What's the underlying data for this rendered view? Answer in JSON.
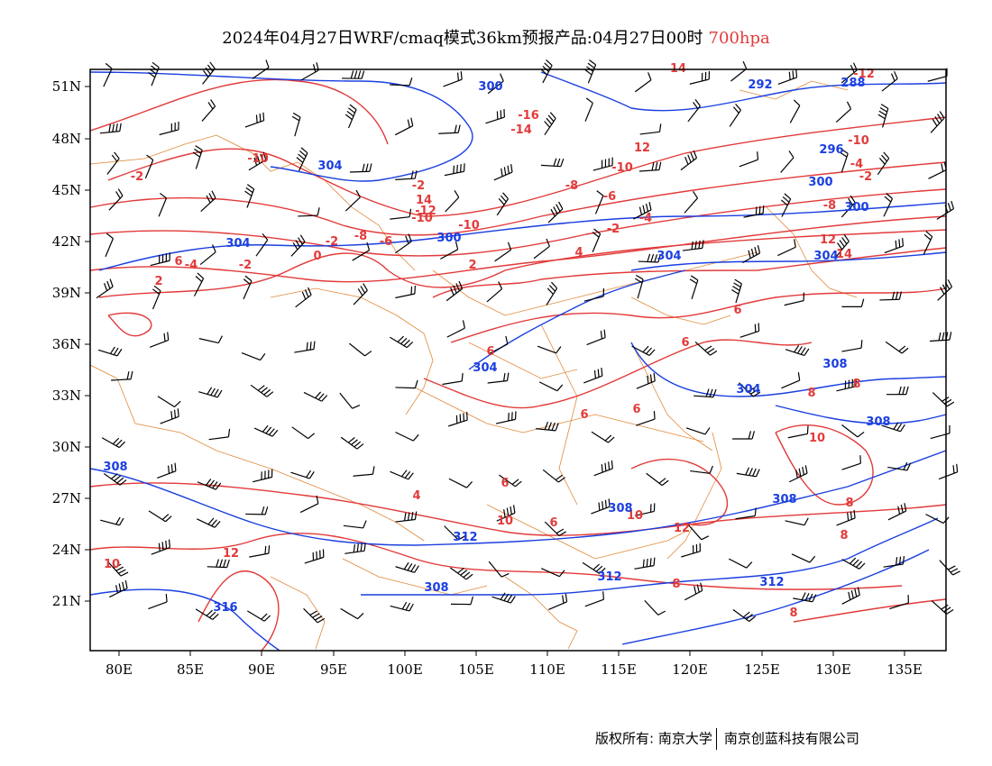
{
  "title": {
    "main": "2024年04月27日WRF/cmaq模式36km预报产品:04月27日00时",
    "level": "700hpa"
  },
  "map": {
    "lon_ticks": [
      "80E",
      "85E",
      "90E",
      "95E",
      "100E",
      "105E",
      "110E",
      "115E",
      "120E",
      "125E",
      "130E",
      "135E"
    ],
    "lat_ticks": [
      "51N",
      "48N",
      "45N",
      "42N",
      "39N",
      "36N",
      "33N",
      "30N",
      "27N",
      "24N",
      "21N"
    ],
    "temperature_labels": [
      "14",
      "-12",
      "-16",
      "-14",
      "-10",
      "-10",
      "12",
      "-10",
      "-10",
      "-8",
      "-6",
      "-4",
      "-2",
      "-2",
      "14",
      "-12",
      "-10",
      "-2",
      "-4",
      "-8",
      "-6",
      "0",
      "-2",
      "-2",
      "-8",
      "-4",
      "-2",
      "2",
      "4",
      "6",
      "6",
      "6",
      "6",
      "6",
      "8",
      "8",
      "4",
      "2",
      "6",
      "6",
      "10",
      "8",
      "12",
      "10",
      "12",
      "8",
      "14",
      "12",
      "10",
      "10",
      "8",
      "8",
      "6"
    ],
    "height_labels": [
      "300",
      "292",
      "288",
      "304",
      "300",
      "296",
      "300",
      "304",
      "304",
      "300",
      "304",
      "304",
      "308",
      "304",
      "308",
      "308",
      "308",
      "312",
      "308",
      "308",
      "312",
      "312",
      "316"
    ],
    "colors": {
      "temperature": "#e23a3a",
      "height": "#1a3fe0",
      "border": "#e0893a",
      "wind": "#000000"
    }
  },
  "footer": {
    "copyright": "版权所有: 南京大学",
    "company": "南京创蓝科技有限公司"
  }
}
